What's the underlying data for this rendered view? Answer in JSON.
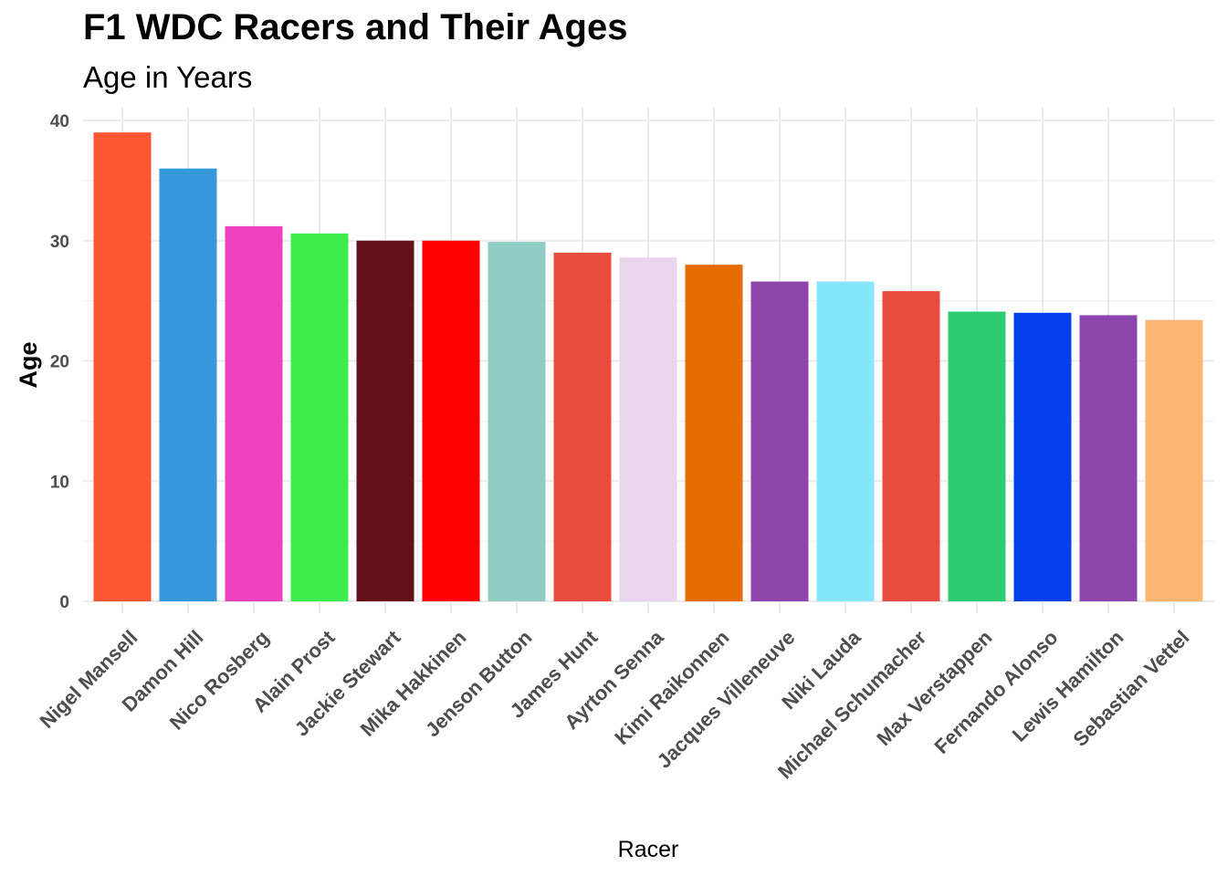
{
  "chart_data": {
    "type": "bar",
    "title": "F1 WDC Racers and Their Ages",
    "subtitle": "Age in Years",
    "xlabel": "Racer",
    "ylabel": "Age",
    "ylim": [
      0,
      40
    ],
    "yticks": [
      0,
      10,
      20,
      30,
      40
    ],
    "grid": true,
    "legend": "none",
    "categories": [
      "Nigel Mansell",
      "Damon Hill",
      "Nico Rosberg",
      "Alain Prost",
      "Jackie Stewart",
      "Mika Hakkinen",
      "Jenson Button",
      "James Hunt",
      "Ayrton Senna",
      "Kimi Raikonnen",
      "Jacques Villeneuve",
      "Niki Lauda",
      "Michael Schumacher",
      "Max Verstappen",
      "Fernando Alonso",
      "Lewis Hamilton",
      "Sebastian Vettel"
    ],
    "values": [
      39,
      36,
      31.2,
      30.6,
      30,
      30,
      29.9,
      29,
      28.6,
      28,
      26.6,
      26.6,
      25.8,
      24.1,
      24,
      23.8,
      23.4
    ],
    "colors": [
      "#FF5733",
      "#3498DB",
      "#EE41BE",
      "#3DED4E",
      "#651018",
      "#FF0000",
      "#8FCDC4",
      "#E74C3C",
      "#E8D6EC",
      "#E66C00",
      "#8E44AD",
      "#85E6FC",
      "#E74C3C",
      "#2ECC71",
      "#0441EC",
      "#8E44AD",
      "#FBB471"
    ]
  }
}
